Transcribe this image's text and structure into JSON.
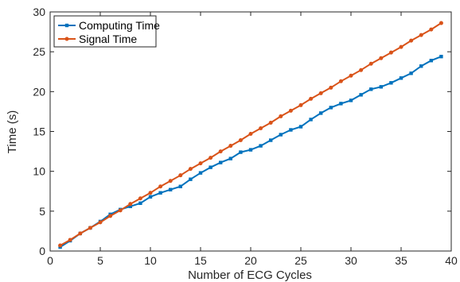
{
  "chart_data": {
    "type": "line",
    "xlabel": "Number of ECG Cycles",
    "ylabel": "Time (s)",
    "xlim": [
      0,
      40
    ],
    "ylim": [
      0,
      30
    ],
    "xticks": [
      0,
      5,
      10,
      15,
      20,
      25,
      30,
      35,
      40
    ],
    "yticks": [
      0,
      5,
      10,
      15,
      20,
      25,
      30
    ],
    "grid": false,
    "legend_position": "top-left",
    "x": [
      1,
      2,
      3,
      4,
      5,
      6,
      7,
      8,
      9,
      10,
      11,
      12,
      13,
      14,
      15,
      16,
      17,
      18,
      19,
      20,
      21,
      22,
      23,
      24,
      25,
      26,
      27,
      28,
      29,
      30,
      31,
      32,
      33,
      34,
      35,
      36,
      37,
      38,
      39
    ],
    "series": [
      {
        "name": "Computing Time",
        "color": "#0072BD",
        "marker": "square",
        "values": [
          0.5,
          1.3,
          2.2,
          2.9,
          3.7,
          4.6,
          5.2,
          5.6,
          6.0,
          6.8,
          7.3,
          7.7,
          8.1,
          9.0,
          9.8,
          10.5,
          11.1,
          11.6,
          12.4,
          12.7,
          13.2,
          13.9,
          14.6,
          15.2,
          15.6,
          16.5,
          17.3,
          18.0,
          18.5,
          18.9,
          19.6,
          20.3,
          20.6,
          21.1,
          21.7,
          22.3,
          23.2,
          23.9,
          24.4
        ]
      },
      {
        "name": "Signal Time",
        "color": "#D95319",
        "marker": "circle",
        "values": [
          0.7,
          1.4,
          2.2,
          2.9,
          3.6,
          4.4,
          5.1,
          5.9,
          6.6,
          7.3,
          8.1,
          8.8,
          9.5,
          10.3,
          11.0,
          11.7,
          12.5,
          13.2,
          13.9,
          14.7,
          15.4,
          16.1,
          16.9,
          17.6,
          18.3,
          19.1,
          19.8,
          20.5,
          21.3,
          22.0,
          22.7,
          23.5,
          24.2,
          24.9,
          25.6,
          26.4,
          27.1,
          27.8,
          28.6
        ]
      }
    ]
  }
}
